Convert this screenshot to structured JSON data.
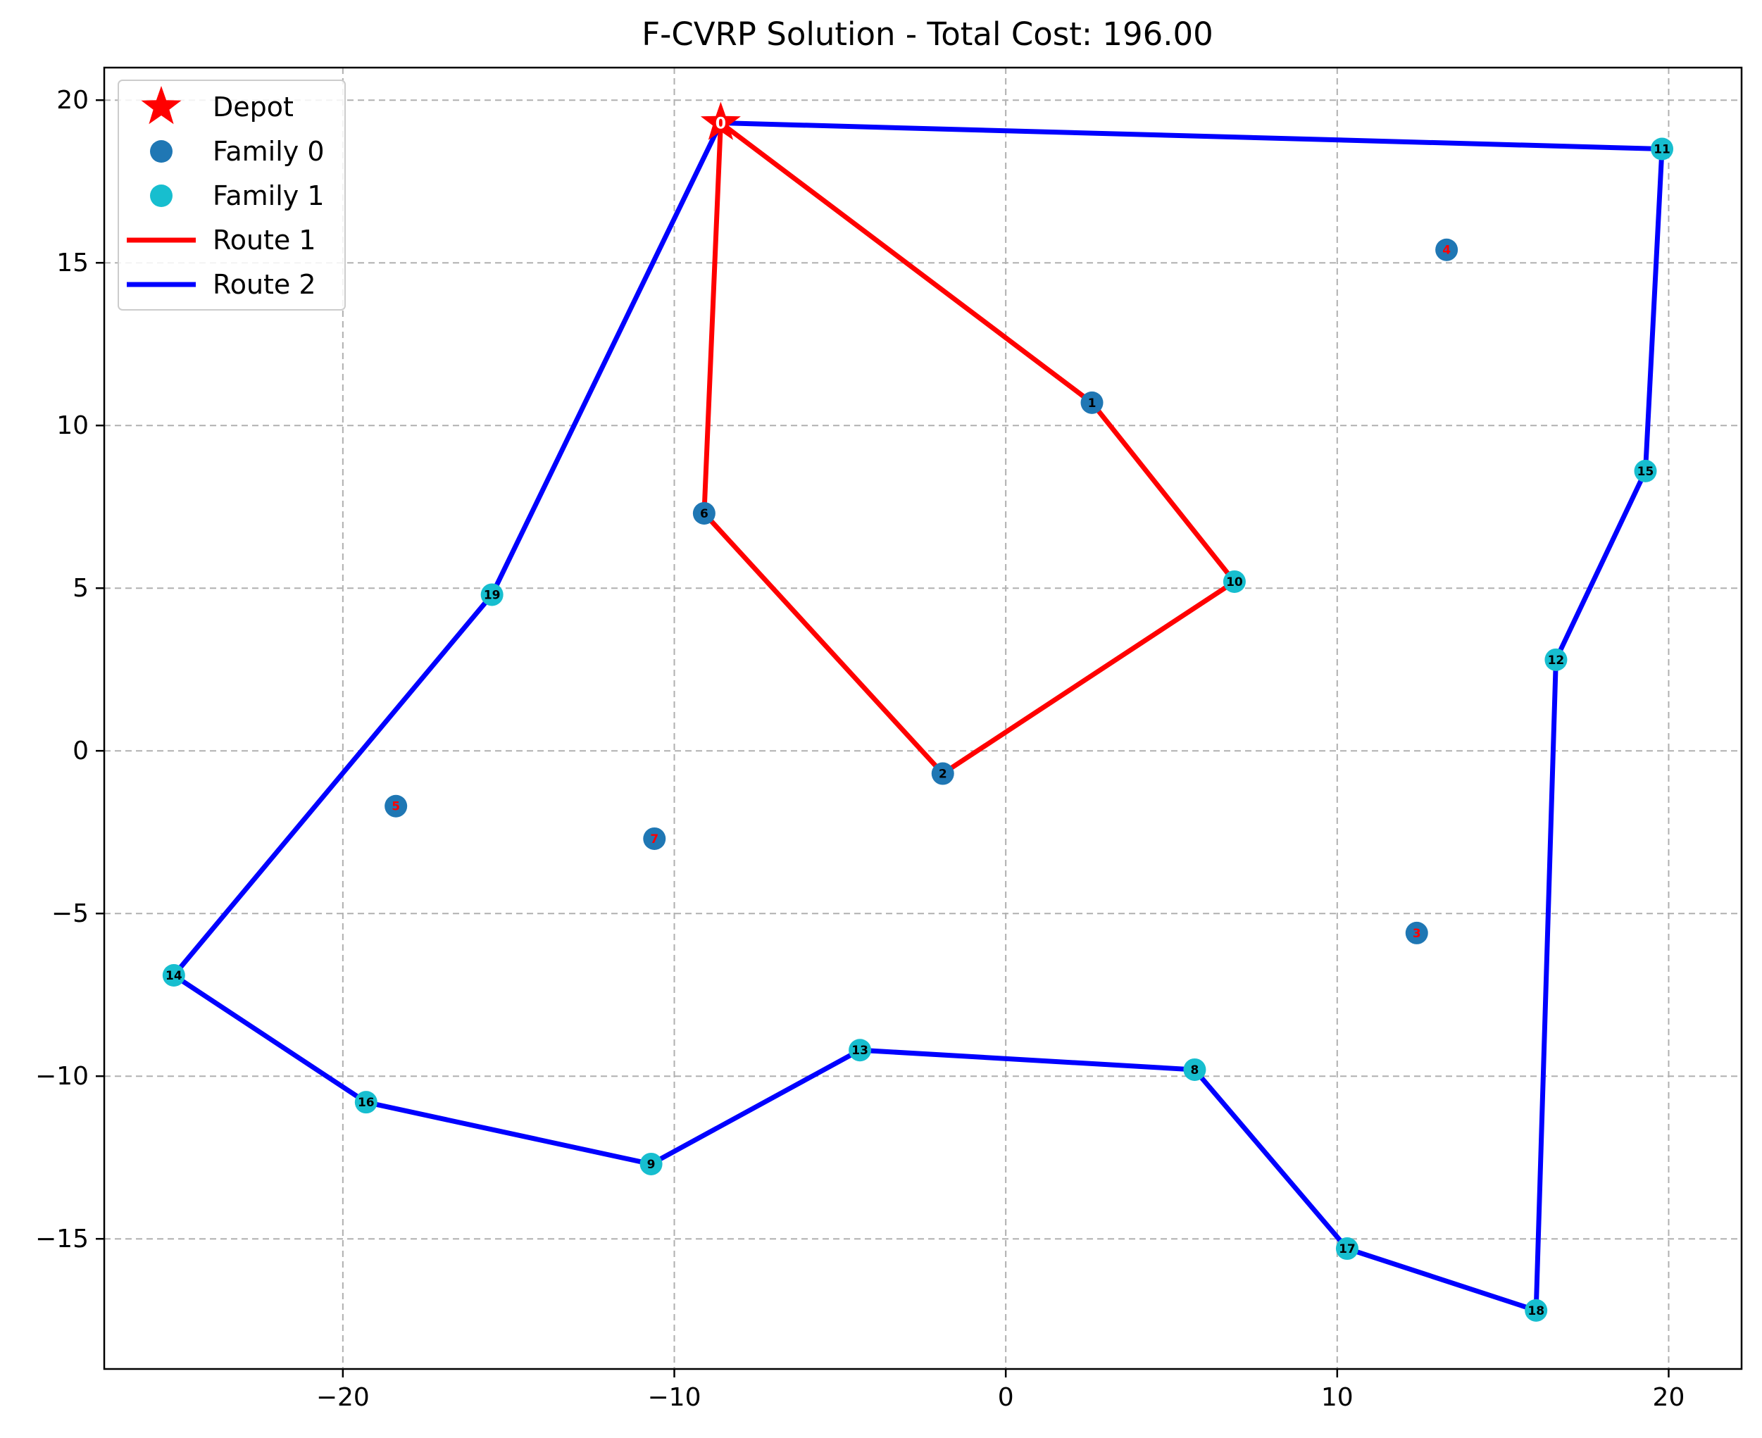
{
  "chart_data": {
    "type": "scatter",
    "title": "F-CVRP Solution - Total Cost: 196.00",
    "xlabel": "",
    "ylabel": "",
    "xlim": [
      -27.2,
      22.2
    ],
    "ylim": [
      -19,
      21
    ],
    "xticks": [
      -20,
      -10,
      0,
      10,
      20
    ],
    "xtick_labels": [
      "−20",
      "−10",
      "0",
      "10",
      "20"
    ],
    "yticks": [
      -15,
      -10,
      -5,
      0,
      5,
      10,
      15,
      20
    ],
    "ytick_labels": [
      "−15",
      "−10",
      "−5",
      "0",
      "5",
      "10",
      "15",
      "20"
    ],
    "grid": true,
    "legend_position": "top-left",
    "legend": [
      {
        "label": "Depot",
        "kind": "star",
        "color": "#ff0000"
      },
      {
        "label": "Family 0",
        "kind": "dot",
        "color": "#1f77b4"
      },
      {
        "label": "Family 1",
        "kind": "dot",
        "color": "#17becf"
      },
      {
        "label": "Route 1",
        "kind": "line",
        "color": "#ff0000"
      },
      {
        "label": "Route 2",
        "kind": "line",
        "color": "#0000ff"
      }
    ],
    "depot": {
      "id": 0,
      "label": "0",
      "x": -8.6,
      "y": 19.3
    },
    "families": [
      {
        "name": "Family 0",
        "color": "#1f77b4",
        "points": [
          {
            "id": 1,
            "label": "1",
            "x": 2.6,
            "y": 10.7,
            "visited": true
          },
          {
            "id": 2,
            "label": "2",
            "x": -1.9,
            "y": -0.7,
            "visited": true
          },
          {
            "id": 3,
            "label": "3",
            "x": 12.4,
            "y": -5.6,
            "visited": false
          },
          {
            "id": 4,
            "label": "4",
            "x": 13.3,
            "y": 15.4,
            "visited": false
          },
          {
            "id": 5,
            "label": "5",
            "x": -18.4,
            "y": -1.7,
            "visited": false
          },
          {
            "id": 6,
            "label": "6",
            "x": -9.1,
            "y": 7.3,
            "visited": true
          },
          {
            "id": 7,
            "label": "7",
            "x": -10.6,
            "y": -2.7,
            "visited": false
          }
        ]
      },
      {
        "name": "Family 1",
        "color": "#17becf",
        "points": [
          {
            "id": 8,
            "label": "8",
            "x": 5.7,
            "y": -9.8,
            "visited": true
          },
          {
            "id": 9,
            "label": "9",
            "x": -10.7,
            "y": -12.7,
            "visited": true
          },
          {
            "id": 10,
            "label": "10",
            "x": 6.9,
            "y": 5.2,
            "visited": true
          },
          {
            "id": 11,
            "label": "11",
            "x": 19.8,
            "y": 18.5,
            "visited": true
          },
          {
            "id": 12,
            "label": "12",
            "x": 16.6,
            "y": 2.8,
            "visited": true
          },
          {
            "id": 13,
            "label": "13",
            "x": -4.4,
            "y": -9.2,
            "visited": true
          },
          {
            "id": 14,
            "label": "14",
            "x": -25.1,
            "y": -6.9,
            "visited": true
          },
          {
            "id": 15,
            "label": "15",
            "x": 19.3,
            "y": 8.6,
            "visited": true
          },
          {
            "id": 16,
            "label": "16",
            "x": -19.3,
            "y": -10.8,
            "visited": true
          },
          {
            "id": 17,
            "label": "17",
            "x": 10.3,
            "y": -15.3,
            "visited": true
          },
          {
            "id": 18,
            "label": "18",
            "x": 16.0,
            "y": -17.2,
            "visited": true
          },
          {
            "id": 19,
            "label": "19",
            "x": -15.5,
            "y": 4.8,
            "visited": true
          }
        ]
      }
    ],
    "routes": [
      {
        "name": "Route 1",
        "color": "#ff0000",
        "sequence": [
          0,
          6,
          2,
          10,
          1,
          0
        ]
      },
      {
        "name": "Route 2",
        "color": "#0000ff",
        "sequence": [
          0,
          19,
          14,
          16,
          9,
          13,
          8,
          17,
          18,
          12,
          15,
          11,
          0
        ]
      }
    ]
  }
}
